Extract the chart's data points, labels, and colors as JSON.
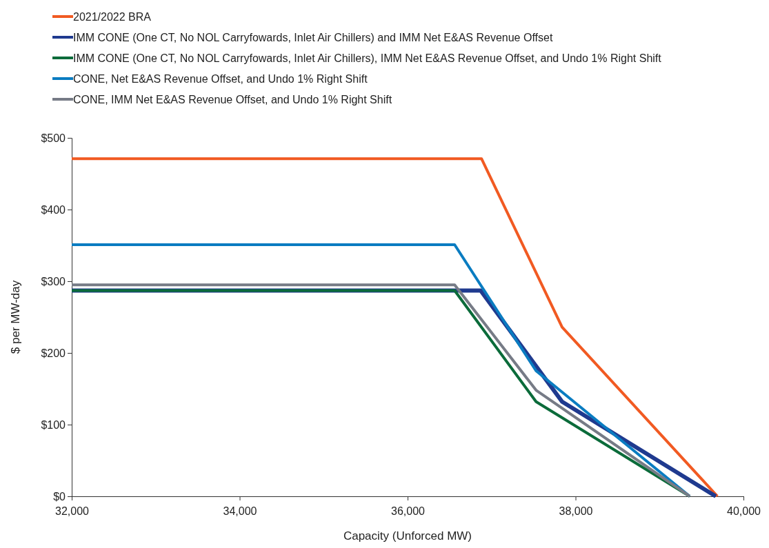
{
  "chart_data": {
    "type": "line",
    "xlabel": "Capacity (Unforced MW)",
    "ylabel": "$ per MW-day",
    "xlim": [
      32000,
      40000
    ],
    "xticks": [
      {
        "value": 32000,
        "label": "32,000"
      },
      {
        "value": 34000,
        "label": "34,000"
      },
      {
        "value": 36000,
        "label": "36,000"
      },
      {
        "value": 38000,
        "label": "38,000"
      },
      {
        "value": 40000,
        "label": "40,000"
      }
    ],
    "ylim": [
      0,
      500
    ],
    "yticks": [
      {
        "value": 0,
        "label": "$0"
      },
      {
        "value": 100,
        "label": "$100"
      },
      {
        "value": 200,
        "label": "$200"
      },
      {
        "value": 300,
        "label": "$300"
      },
      {
        "value": 400,
        "label": "$400"
      },
      {
        "value": 500,
        "label": "$500"
      }
    ],
    "grid": false,
    "legend": "top left",
    "marker": "none",
    "line_style": "solid",
    "series": [
      {
        "name": "2021/2022 BRA",
        "color": "#f15a22",
        "x": [
          32000,
          36880,
          37840,
          39690
        ],
        "values": [
          471,
          471,
          236,
          0
        ]
      },
      {
        "name": "IMM CONE (One CT, No NOL Carryfowards, Inlet Air Chillers) and IMM Net E&AS Revenue Offset",
        "color": "#1f3a8f",
        "x": [
          32000,
          36560,
          36870,
          37840,
          39670
        ],
        "values": [
          287,
          287,
          287,
          132,
          0
        ]
      },
      {
        "name": "IMM CONE (One CT, No NOL Carryfowards, Inlet Air Chillers), IMM Net E&AS Revenue Offset, and Undo 1% Right Shift",
        "color": "#0b6b3a",
        "x": [
          32000,
          36560,
          37530,
          39360
        ],
        "values": [
          287,
          287,
          132,
          0
        ]
      },
      {
        "name": "CONE, Net E&AS Revenue Offset, and Undo 1% Right Shift",
        "color": "#0a7cc1",
        "x": [
          32000,
          36560,
          37530,
          39360
        ],
        "values": [
          351,
          351,
          175,
          0
        ]
      },
      {
        "name": "CONE, IMM Net E&AS Revenue Offset, and Undo 1% Right Shift",
        "color": "#767b86",
        "x": [
          32000,
          36560,
          37530,
          39360
        ],
        "values": [
          295,
          295,
          148,
          0
        ]
      }
    ]
  }
}
